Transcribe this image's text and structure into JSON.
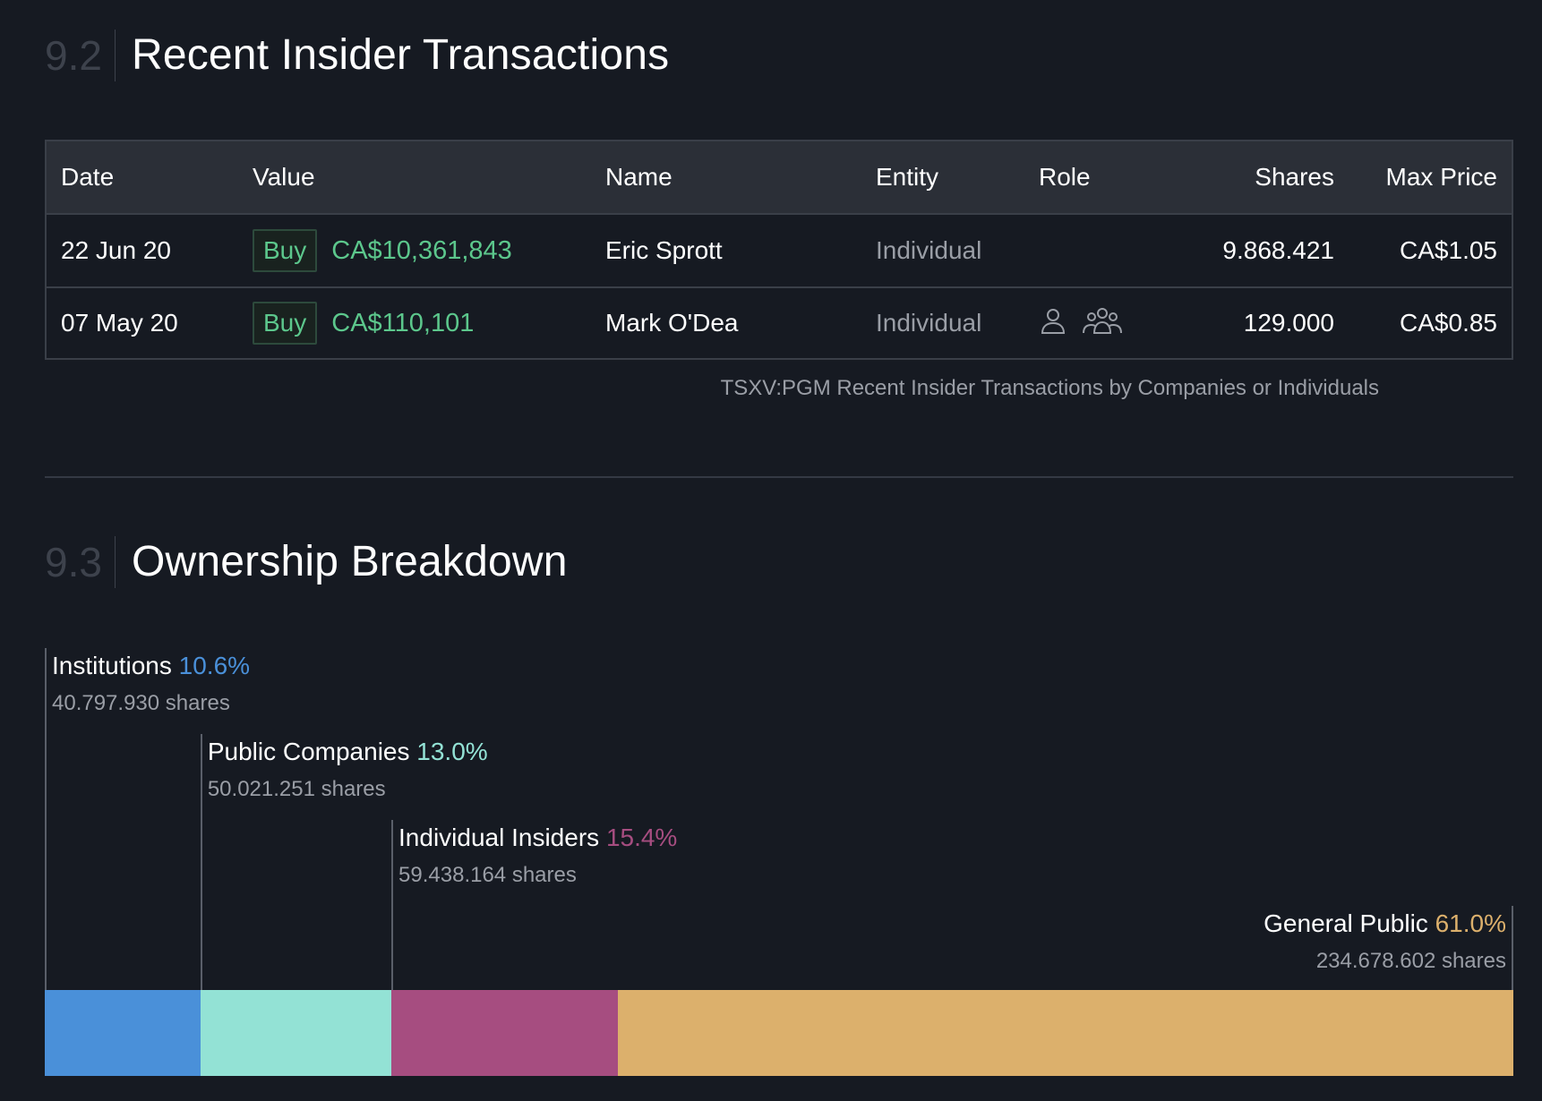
{
  "section_insider": {
    "number": "9.2",
    "title": "Recent Insider Transactions"
  },
  "table": {
    "headers": {
      "date": "Date",
      "value": "Value",
      "name": "Name",
      "entity": "Entity",
      "role": "Role",
      "shares": "Shares",
      "max_price": "Max Price"
    },
    "rows": [
      {
        "date": "22 Jun 20",
        "type": "Buy",
        "amount": "CA$10,361,843",
        "name": "Eric Sprott",
        "entity": "Individual",
        "role_icons": [],
        "shares": "9.868.421",
        "max_price": "CA$1.05"
      },
      {
        "date": "07 May 20",
        "type": "Buy",
        "amount": "CA$110,101",
        "name": "Mark O'Dea",
        "entity": "Individual",
        "role_icons": [
          "person-icon",
          "group-icon"
        ],
        "shares": "129.000",
        "max_price": "CA$0.85"
      }
    ],
    "caption": "TSXV:PGM Recent Insider Transactions by Companies or Individuals"
  },
  "section_ownership": {
    "number": "9.3",
    "title": "Ownership Breakdown"
  },
  "ownership": [
    {
      "label": "Institutions",
      "percent": "10.6%",
      "shares": "40.797.930 shares",
      "fraction": 0.106,
      "color": "#4a90d9"
    },
    {
      "label": "Public Companies",
      "percent": "13.0%",
      "shares": "50.021.251 shares",
      "fraction": 0.13,
      "color": "#93e2d5"
    },
    {
      "label": "Individual Insiders",
      "percent": "15.4%",
      "shares": "59.438.164 shares",
      "fraction": 0.154,
      "color": "#a64d80"
    },
    {
      "label": "General Public",
      "percent": "61.0%",
      "shares": "234.678.602 shares",
      "fraction": 0.61,
      "color": "#dcb06c"
    }
  ],
  "colors": {
    "buy": "#5cc78c",
    "background": "#161a22",
    "header_bg": "#2b2f37"
  }
}
